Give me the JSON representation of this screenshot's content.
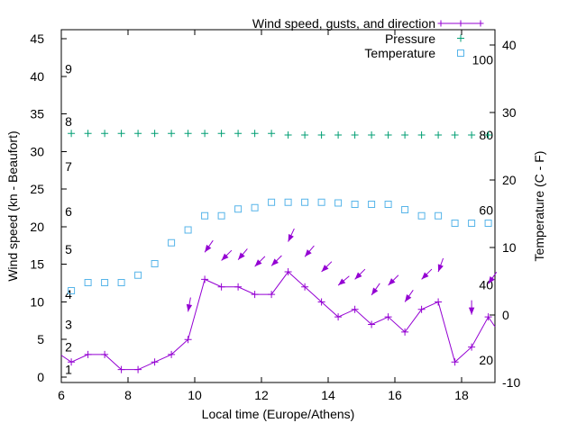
{
  "colors": {
    "wind": "#9400d3",
    "pressure": "#009e73",
    "temperature": "#56b4e9",
    "axis": "#000000",
    "background": "#ffffff"
  },
  "labels": {
    "x": "Local time (Europe/Athens)",
    "y_left": "Wind speed (kn - Beaufort)",
    "y_right": "Temperature (C - F)"
  },
  "legend": {
    "entries": [
      {
        "label": "Wind speed, gusts, and direction",
        "style": "line-plus",
        "color": "#9400d3"
      },
      {
        "label": "Pressure",
        "style": "plus",
        "color": "#009e73"
      },
      {
        "label": "Temperature",
        "style": "open-square",
        "color": "#56b4e9"
      }
    ]
  },
  "chart_data": {
    "type": "line",
    "title": "",
    "x_axis": {
      "label": "Local time (Europe/Athens)",
      "range": [
        6,
        19
      ],
      "ticks": [
        6,
        8,
        10,
        12,
        14,
        16,
        18
      ]
    },
    "y_left_axis": {
      "label": "Wind speed (kn - Beaufort)",
      "units": "kn",
      "range": [
        -0.7,
        46.2
      ],
      "ticks": [
        0,
        5,
        10,
        15,
        20,
        25,
        30,
        35,
        40,
        45
      ],
      "beaufort_scale_labels": [
        {
          "b": "1",
          "kn": 1
        },
        {
          "b": "2",
          "kn": 4
        },
        {
          "b": "3",
          "kn": 7
        },
        {
          "b": "4",
          "kn": 11
        },
        {
          "b": "5",
          "kn": 17
        },
        {
          "b": "6",
          "kn": 22
        },
        {
          "b": "7",
          "kn": 28
        },
        {
          "b": "8",
          "kn": 34
        },
        {
          "b": "9",
          "kn": 41
        }
      ]
    },
    "y_right_axis": {
      "label": "Temperature (C - F)",
      "units": "C",
      "range": [
        -10,
        42.3
      ],
      "ticks": [
        -10,
        0,
        10,
        20,
        30,
        40
      ],
      "fahrenheit_scale_labels": [
        {
          "f": "20"
        },
        {
          "f": "40"
        },
        {
          "f": "60"
        },
        {
          "f": "80"
        },
        {
          "f": "100"
        }
      ]
    },
    "x": [
      6.3,
      6.8,
      7.3,
      7.8,
      8.3,
      8.8,
      9.3,
      9.8,
      10.3,
      10.8,
      11.3,
      11.8,
      12.3,
      12.8,
      13.3,
      13.8,
      14.3,
      14.8,
      15.3,
      15.8,
      16.3,
      16.8,
      17.3,
      17.8,
      18.3,
      18.8
    ],
    "series": [
      {
        "name": "Wind speed, gusts, and direction",
        "type": "line+points",
        "marker": "plus",
        "color": "#9400d3",
        "values_kn": [
          2,
          3,
          3,
          1,
          1,
          2,
          3,
          5,
          13,
          12,
          12,
          11,
          11,
          14,
          12,
          10,
          8,
          9,
          7,
          8,
          6,
          9,
          10,
          2,
          4,
          8
        ],
        "edge_start": [
          6.0,
          2.9
        ],
        "edge_end": [
          19.0,
          6.7
        ]
      },
      {
        "name": "Gusts with wind direction",
        "type": "vectors",
        "color": "#9400d3",
        "points": [
          {
            "t": 9.8,
            "kn": 8.7,
            "dir_deg": 190
          },
          {
            "t": 10.3,
            "kn": 16.6,
            "dir_deg": 215
          },
          {
            "t": 10.8,
            "kn": 15.5,
            "dir_deg": 225
          },
          {
            "t": 11.3,
            "kn": 15.6,
            "dir_deg": 220
          },
          {
            "t": 11.8,
            "kn": 14.7,
            "dir_deg": 225
          },
          {
            "t": 12.3,
            "kn": 14.8,
            "dir_deg": 225
          },
          {
            "t": 12.8,
            "kn": 18.0,
            "dir_deg": 205
          },
          {
            "t": 13.3,
            "kn": 16.0,
            "dir_deg": 220
          },
          {
            "t": 13.8,
            "kn": 14.0,
            "dir_deg": 225
          },
          {
            "t": 14.3,
            "kn": 12.2,
            "dir_deg": 230
          },
          {
            "t": 14.8,
            "kn": 13.0,
            "dir_deg": 225
          },
          {
            "t": 15.3,
            "kn": 10.9,
            "dir_deg": 215
          },
          {
            "t": 15.8,
            "kn": 12.2,
            "dir_deg": 225
          },
          {
            "t": 16.3,
            "kn": 10.0,
            "dir_deg": 215
          },
          {
            "t": 16.8,
            "kn": 13.0,
            "dir_deg": 225
          },
          {
            "t": 17.3,
            "kn": 14.0,
            "dir_deg": 200
          },
          {
            "t": 18.3,
            "kn": 8.3,
            "dir_deg": 180
          },
          {
            "t": 18.8,
            "kn": 12.4,
            "dir_deg": 215
          }
        ]
      },
      {
        "name": "Pressure",
        "type": "points",
        "marker": "plus",
        "color": "#009e73",
        "values_on_left_scale": [
          32.4,
          32.4,
          32.4,
          32.4,
          32.4,
          32.4,
          32.4,
          32.4,
          32.4,
          32.4,
          32.4,
          32.4,
          32.4,
          32.2,
          32.2,
          32.2,
          32.2,
          32.2,
          32.2,
          32.2,
          32.2,
          32.2,
          32.2,
          32.2,
          32.2,
          32.2
        ]
      },
      {
        "name": "Temperature",
        "type": "points",
        "marker": "open-square",
        "color": "#56b4e9",
        "values_c": [
          3.6,
          4.8,
          4.8,
          4.8,
          5.9,
          7.6,
          10.7,
          12.6,
          14.7,
          14.7,
          15.7,
          15.9,
          16.7,
          16.7,
          16.7,
          16.7,
          16.6,
          16.4,
          16.4,
          16.4,
          15.6,
          14.7,
          14.7,
          13.6,
          13.6,
          13.6
        ]
      }
    ]
  }
}
